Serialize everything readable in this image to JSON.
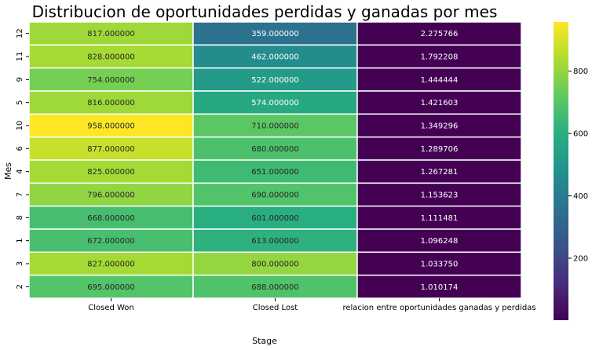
{
  "chart_data": {
    "type": "heatmap",
    "title": "Distribucion de oportunidades perdidas y ganadas por mes",
    "xlabel": "Stage",
    "ylabel": "Mes",
    "columns": [
      "Closed Won",
      "Closed Lost",
      "relacion entre oportunidades ganadas y perdidas"
    ],
    "rows": [
      "12",
      "11",
      "9",
      "5",
      "10",
      "6",
      "4",
      "7",
      "8",
      "1",
      "3",
      "2"
    ],
    "values": [
      [
        817.0,
        359.0,
        2.275766
      ],
      [
        828.0,
        462.0,
        1.792208
      ],
      [
        754.0,
        522.0,
        1.444444
      ],
      [
        816.0,
        574.0,
        1.421603
      ],
      [
        958.0,
        710.0,
        1.349296
      ],
      [
        877.0,
        680.0,
        1.289706
      ],
      [
        825.0,
        651.0,
        1.267281
      ],
      [
        796.0,
        690.0,
        1.153623
      ],
      [
        668.0,
        601.0,
        1.111481
      ],
      [
        672.0,
        613.0,
        1.096248
      ],
      [
        827.0,
        800.0,
        1.03375
      ],
      [
        695.0,
        688.0,
        1.010174
      ]
    ],
    "value_format": "fixed-6",
    "colormap": "viridis",
    "vmin": 1.010174,
    "vmax": 958.0,
    "colorbar_ticks": [
      200,
      400,
      600,
      800
    ]
  }
}
